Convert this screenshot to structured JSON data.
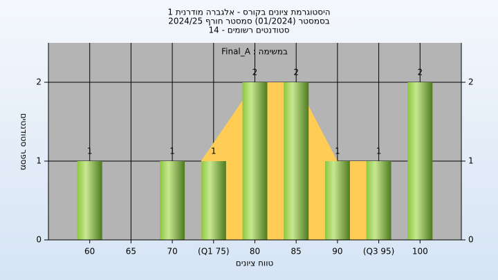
{
  "chart_data": {
    "type": "bar",
    "title": [
      "היסטוגרמת ציונים בקורס - אלגברה מודרנית 1",
      "בסמסטר  (01/2024)  סמסטר חורף 2024/25",
      "סטודנטים רשומים - 14"
    ],
    "annotation": "Final_A : במשימה",
    "x_label": "טווח ציונים",
    "y_label": "מספר סטודנטים",
    "categories": [
      "60",
      "65",
      "70",
      "(Q1 75)",
      "80",
      "85",
      "90",
      "(Q3 95)",
      "100"
    ],
    "values": [
      1,
      0,
      1,
      1,
      2,
      2,
      1,
      1,
      2
    ],
    "value_labels": [
      "1",
      null,
      "1",
      "1",
      "2",
      "2",
      "1",
      "1",
      "2"
    ],
    "color": "#8cc640",
    "area": {
      "color": "#ffcc55",
      "values": [
        null,
        null,
        null,
        1,
        2,
        2,
        1,
        1,
        null
      ]
    },
    "ylim": [
      0,
      2.5
    ],
    "yticks": [
      0,
      1,
      2
    ],
    "grid": true
  }
}
